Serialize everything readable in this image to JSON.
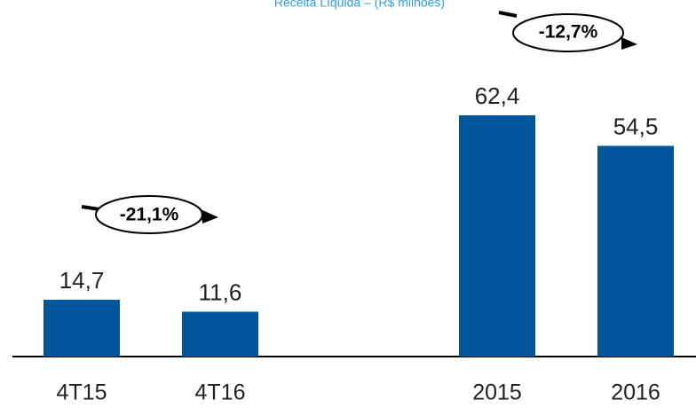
{
  "chart_data": {
    "type": "bar",
    "title": "Receita Líquida – (R$ milhões)",
    "categories": [
      "4T15",
      "4T16",
      null,
      "2015",
      "2016"
    ],
    "values": [
      14.7,
      11.6,
      null,
      62.4,
      54.5
    ],
    "value_labels": [
      "14,7",
      "11,6",
      null,
      "62,4",
      "54,5"
    ],
    "color": "#00569a",
    "annotations": [
      "-21,1%",
      "-12,7%"
    ]
  }
}
